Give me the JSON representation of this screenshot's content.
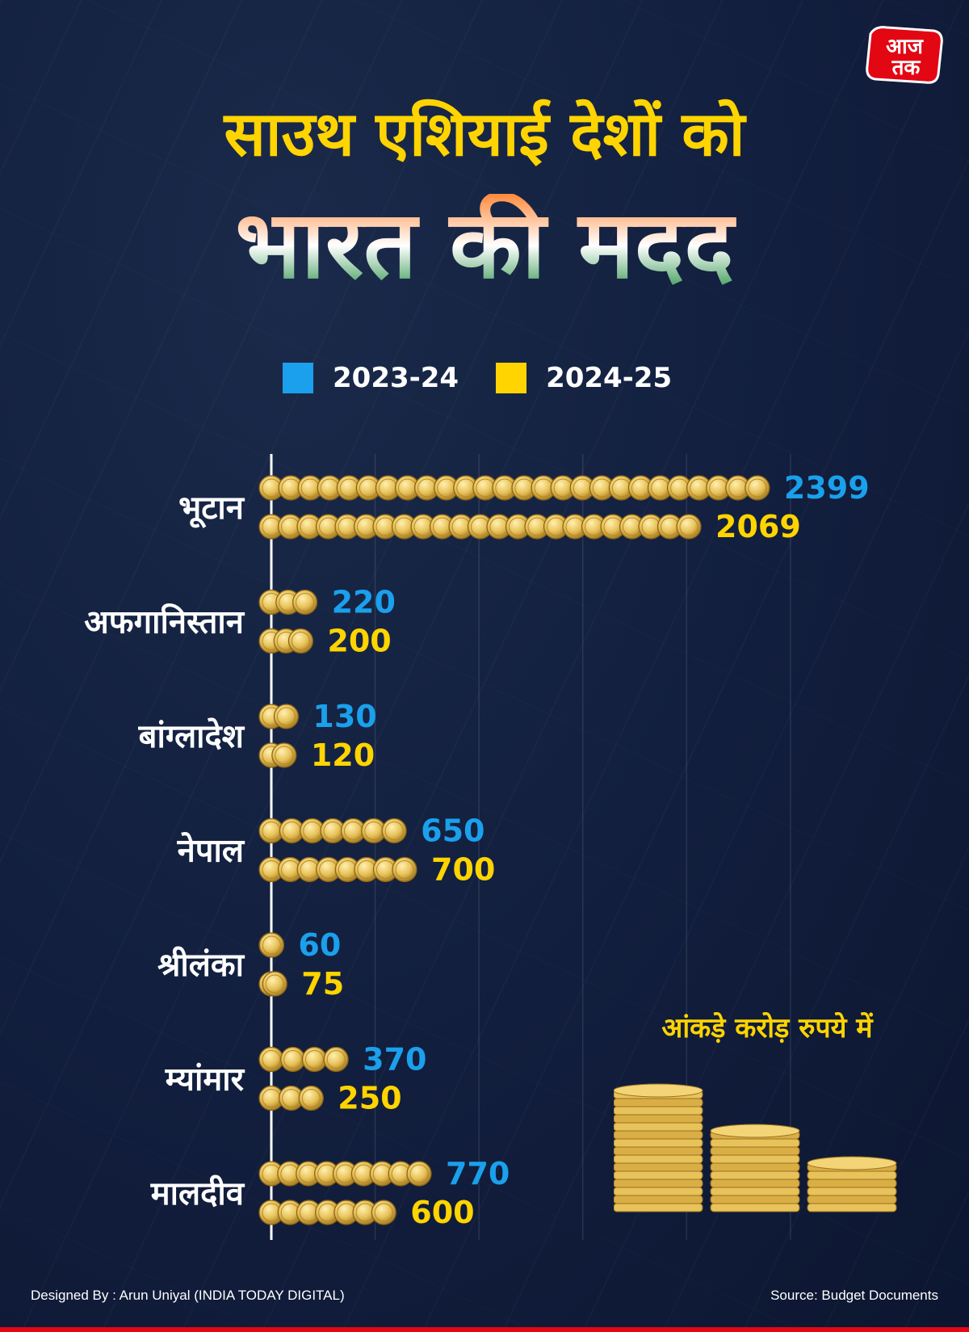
{
  "logo": {
    "line1": "आज",
    "line2": "तक"
  },
  "title": {
    "line1": "साउथ एशियाई देशों को",
    "line2": "भारत की मदद"
  },
  "legend": [
    {
      "label": "2023-24",
      "color": "#1aa0ec"
    },
    {
      "label": "2024-25",
      "color": "#ffd400"
    }
  ],
  "chart_data": {
    "type": "bar",
    "orientation": "horizontal",
    "categories": [
      "भूटान",
      "अफगानिस्तान",
      "बांग्लादेश",
      "नेपाल",
      "श्रीलंका",
      "म्यांमार",
      "मालदीव"
    ],
    "series": [
      {
        "name": "2023-24",
        "color": "#1aa0ec",
        "values": [
          2399,
          220,
          130,
          650,
          60,
          370,
          770
        ]
      },
      {
        "name": "2024-25",
        "color": "#ffd400",
        "values": [
          2069,
          200,
          120,
          700,
          75,
          250,
          600
        ]
      }
    ],
    "xlim": [
      0,
      2800
    ],
    "grid": true,
    "unit_note": "आंकड़े करोड़ रुपये में"
  },
  "footer": {
    "designer": "Designed By : Arun Uniyal (INDIA TODAY DIGITAL)",
    "source": "Source: Budget Documents"
  },
  "colors": {
    "accent_red": "#e30613",
    "coin_gold": "#e8c25a"
  }
}
